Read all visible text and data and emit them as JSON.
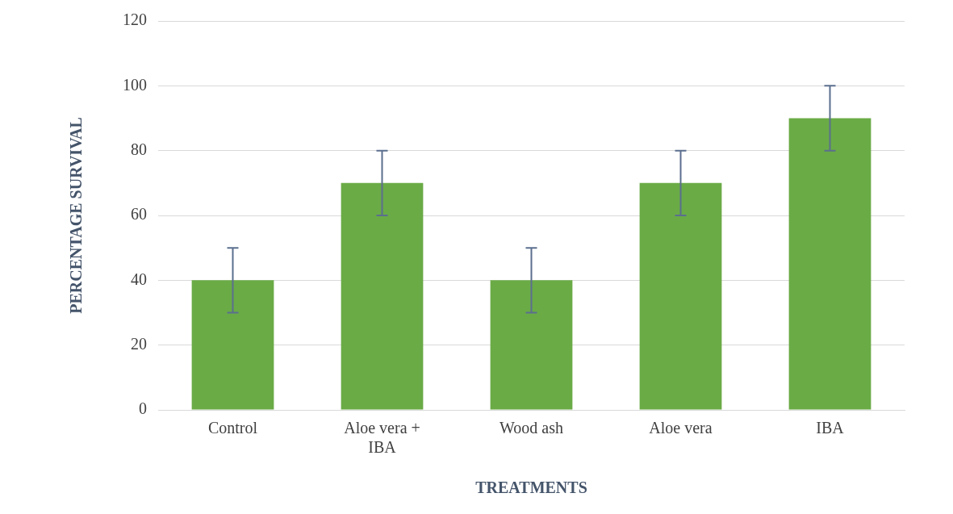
{
  "chart_data": {
    "type": "bar",
    "xlabel": "TREATMENTS",
    "ylabel": "PERCENTAGE SURVIVAL",
    "categories": [
      "Control",
      "Aloe vera + IBA",
      "Wood ash",
      "Aloe vera",
      "IBA"
    ],
    "values": [
      40,
      70,
      40,
      70,
      90
    ],
    "errors": [
      10,
      10,
      10,
      10,
      10
    ],
    "color": "#6aab46",
    "ylim": [
      0,
      120
    ],
    "yticks": [
      0,
      20,
      40,
      60,
      80,
      100,
      120
    ],
    "grid": "y",
    "legend": false
  }
}
